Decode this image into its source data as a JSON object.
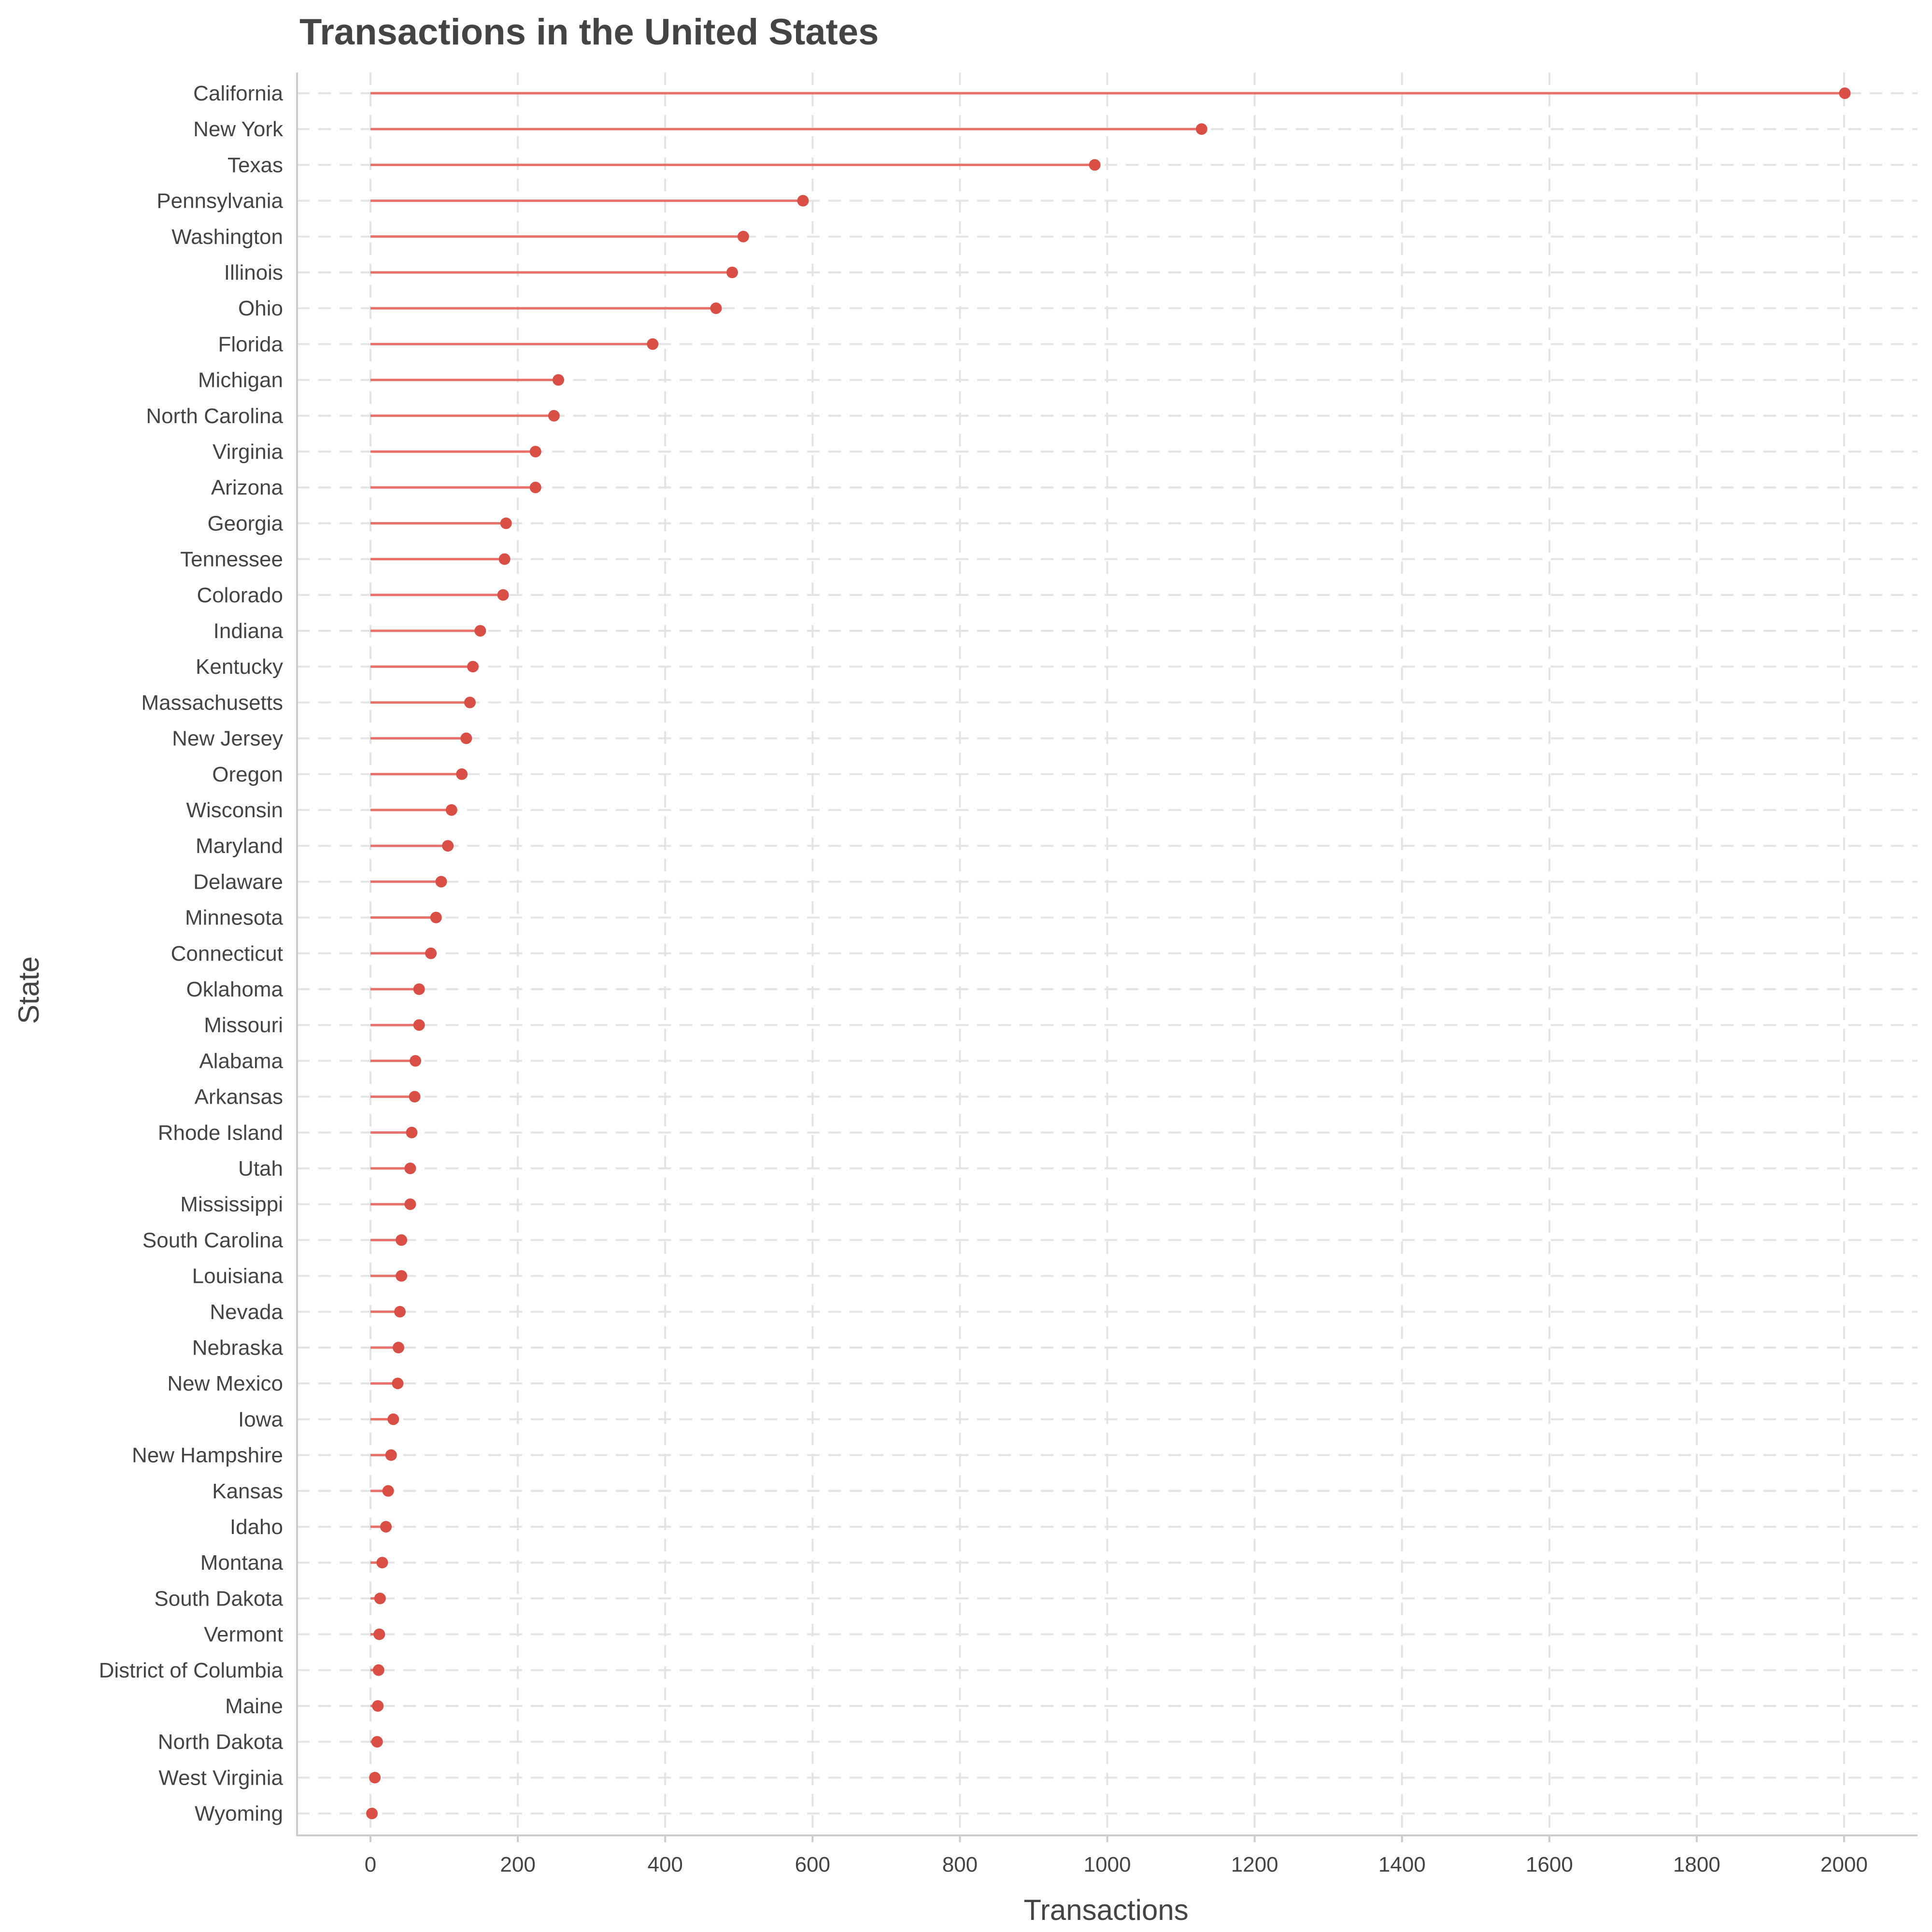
{
  "chart_data": {
    "type": "lollipop",
    "title": "Transactions in the United States",
    "xlabel": "Transactions",
    "ylabel": "State",
    "xlim": [
      -100,
      2100
    ],
    "xticks": [
      0,
      200,
      400,
      600,
      800,
      1000,
      1200,
      1400,
      1600,
      1800,
      2000
    ],
    "grid": true,
    "colors": {
      "stem": "#e8706a",
      "point": "#d94f45",
      "grid": "#e3e3e3",
      "text": "#444444"
    },
    "categories": [
      "California",
      "New York",
      "Texas",
      "Pennsylvania",
      "Washington",
      "Illinois",
      "Ohio",
      "Florida",
      "Michigan",
      "North Carolina",
      "Virginia",
      "Arizona",
      "Georgia",
      "Tennessee",
      "Colorado",
      "Indiana",
      "Kentucky",
      "Massachusetts",
      "New Jersey",
      "Oregon",
      "Wisconsin",
      "Maryland",
      "Delaware",
      "Minnesota",
      "Connecticut",
      "Oklahoma",
      "Missouri",
      "Alabama",
      "Arkansas",
      "Rhode Island",
      "Utah",
      "Mississippi",
      "South Carolina",
      "Louisiana",
      "Nevada",
      "Nebraska",
      "New Mexico",
      "Iowa",
      "New Hampshire",
      "Kansas",
      "Idaho",
      "Montana",
      "South Dakota",
      "Vermont",
      "District of Columbia",
      "Maine",
      "North Dakota",
      "West Virginia",
      "Wyoming"
    ],
    "values": [
      2001,
      1128,
      983,
      587,
      506,
      491,
      469,
      383,
      255,
      249,
      224,
      224,
      184,
      182,
      180,
      149,
      139,
      135,
      130,
      124,
      110,
      105,
      96,
      89,
      82,
      66,
      66,
      61,
      60,
      56,
      54,
      54,
      42,
      42,
      40,
      38,
      37,
      31,
      28,
      24,
      21,
      16,
      13,
      12,
      11,
      10,
      9,
      6,
      2
    ]
  }
}
